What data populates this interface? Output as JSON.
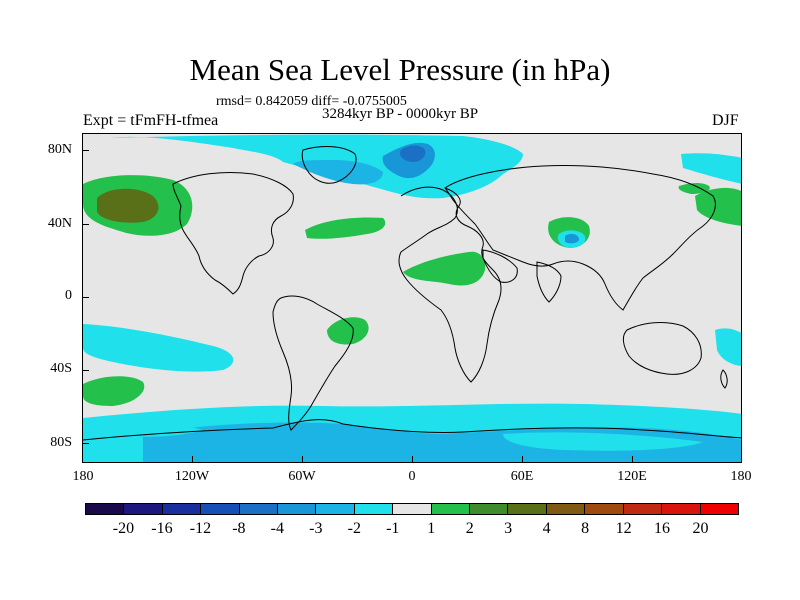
{
  "title": "Mean Sea Level Pressure (in hPa)",
  "subtitle_rmsd": "rmsd= 0.842059 diff= -0.0755005",
  "subtitle_period": "3284kyr BP - 0000kyr BP",
  "left_label": "Expt = tFmFH-tfmea",
  "right_label": "DJF",
  "y_labels": [
    "80N",
    "40N",
    "0",
    "40S",
    "80S"
  ],
  "x_labels": [
    "180",
    "120W",
    "60W",
    "0",
    "60E",
    "120E",
    "180"
  ],
  "colorbar": {
    "colors": [
      "#1a0a4a",
      "#1c1880",
      "#1a2f9e",
      "#1550b8",
      "#1b70c6",
      "#1896d8",
      "#1cb4e4",
      "#20e0ec",
      "#e6e6e6",
      "#24c04c",
      "#3e8c2c",
      "#5a7018",
      "#805a14",
      "#a04a10",
      "#c02a10",
      "#d8140c",
      "#ee0000"
    ],
    "labels": [
      "-20",
      "-16",
      "-12",
      "-8",
      "-4",
      "-3",
      "-2",
      "-1",
      "1",
      "2",
      "3",
      "4",
      "8",
      "12",
      "16",
      "20"
    ]
  },
  "palette": {
    "light_cyan": "#20e0ec",
    "cyan": "#1cb4e4",
    "blue": "#1896d8",
    "dark_blue": "#1b70c6",
    "green": "#24c04c",
    "dark_green": "#3e8c2c",
    "olive": "#5a7018",
    "neutral": "#e6e6e6"
  }
}
